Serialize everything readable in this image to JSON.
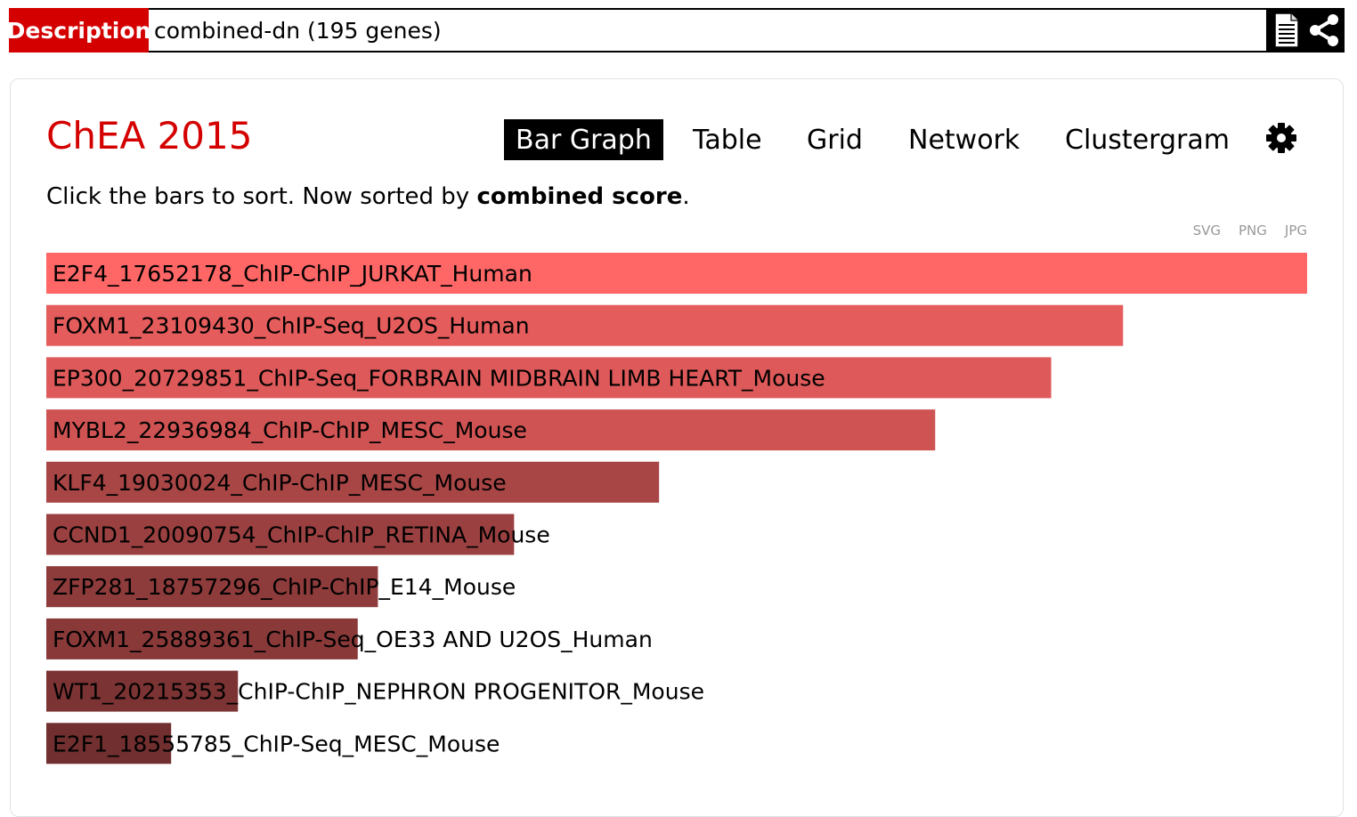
{
  "header": {
    "label": "Description",
    "description": "combined-dn (195 genes)",
    "icons": [
      "document-icon",
      "share-icon"
    ]
  },
  "library": {
    "title": "ChEA 2015"
  },
  "tabs": [
    {
      "label": "Bar Graph",
      "active": true
    },
    {
      "label": "Table",
      "active": false
    },
    {
      "label": "Grid",
      "active": false
    },
    {
      "label": "Network",
      "active": false
    },
    {
      "label": "Clustergram",
      "active": false
    }
  ],
  "hint": {
    "prefix": "Click the bars to sort. Now sorted by ",
    "bold": "combined score",
    "suffix": "."
  },
  "exports": [
    "SVG",
    "PNG",
    "JPG"
  ],
  "chart_data": {
    "type": "bar",
    "orientation": "horizontal",
    "sort": "combined score",
    "categories": [
      "E2F4_17652178_ChIP-ChIP_JURKAT_Human",
      "FOXM1_23109430_ChIP-Seq_U2OS_Human",
      "EP300_20729851_ChIP-Seq_FORBRAIN MIDBRAIN LIMB HEART_Mouse",
      "MYBL2_22936984_ChIP-ChIP_MESC_Mouse",
      "KLF4_19030024_ChIP-ChIP_MESC_Mouse",
      "CCND1_20090754_ChIP-ChIP_RETINA_Mouse",
      "ZFP281_18757296_ChIP-ChIP_E14_Mouse",
      "FOXM1_25889361_ChIP-Seq_OE33 AND U2OS_Human",
      "WT1_20215353_ChIP-ChIP_NEPHRON PROGENITOR_Mouse",
      "E2F1_18555785_ChIP-Seq_MESC_Mouse"
    ],
    "values": [
      1.0,
      0.854,
      0.797,
      0.705,
      0.486,
      0.371,
      0.263,
      0.247,
      0.152,
      0.099
    ],
    "colors": [
      "#ff6666",
      "#e55c5c",
      "#de5959",
      "#cf5353",
      "#a84545",
      "#9b4040",
      "#8e3b3b",
      "#8a3939",
      "#7c3333",
      "#722f2f"
    ],
    "axes_visible": false
  }
}
